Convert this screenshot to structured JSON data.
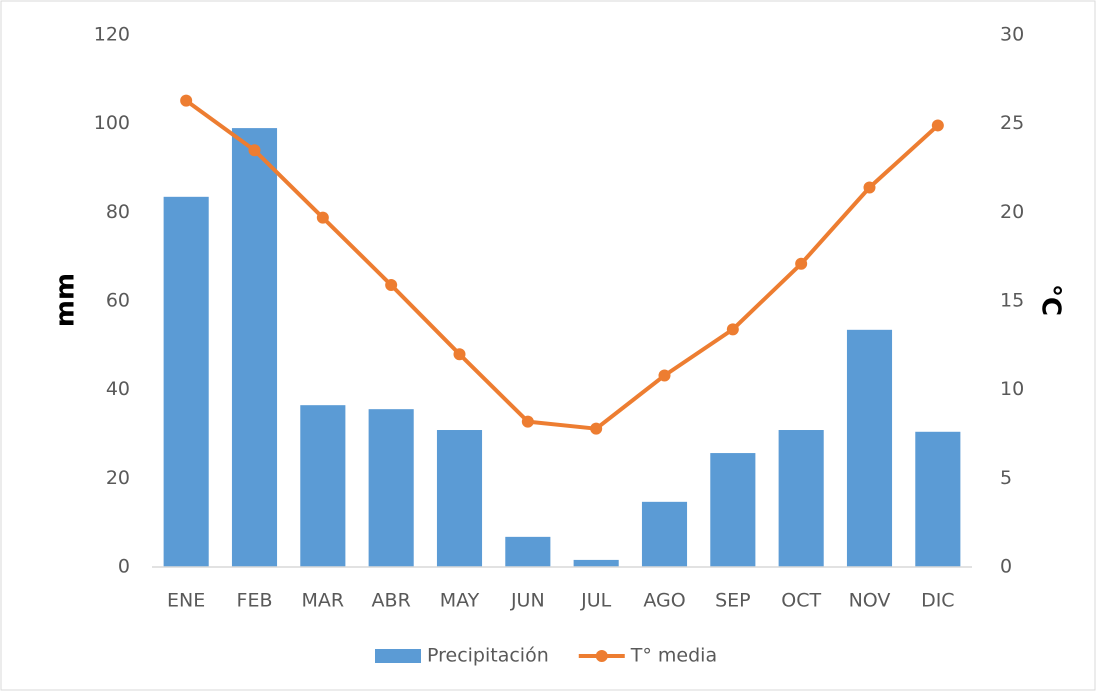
{
  "chart_data": {
    "type": "bar",
    "categories": [
      "ENE",
      "FEB",
      "MAR",
      "ABR",
      "MAY",
      "JUN",
      "JUL",
      "AGO",
      "SEP",
      "OCT",
      "NOV",
      "DIC"
    ],
    "series": [
      {
        "name": "Precipitación",
        "type": "bar",
        "color": "#5b9bd5",
        "values": [
          83.5,
          99,
          36.5,
          35.6,
          30.9,
          6.8,
          1.6,
          14.7,
          25.7,
          30.9,
          53.5,
          30.5
        ]
      },
      {
        "name": "T° media",
        "type": "line",
        "axis": "y2",
        "color": "#ed7d31",
        "values": [
          26.3,
          23.5,
          19.7,
          15.9,
          12.0,
          8.2,
          7.8,
          10.8,
          13.4,
          17.1,
          21.4,
          24.9
        ]
      }
    ],
    "ylabel": "mm",
    "y2label": "°C",
    "ylim": [
      0,
      120
    ],
    "yticks": [
      0,
      20,
      40,
      60,
      80,
      100,
      120
    ],
    "y2lim": [
      0,
      30
    ],
    "y2ticks": [
      0,
      5,
      10,
      15,
      20,
      25,
      30
    ],
    "legend": "bottom"
  }
}
